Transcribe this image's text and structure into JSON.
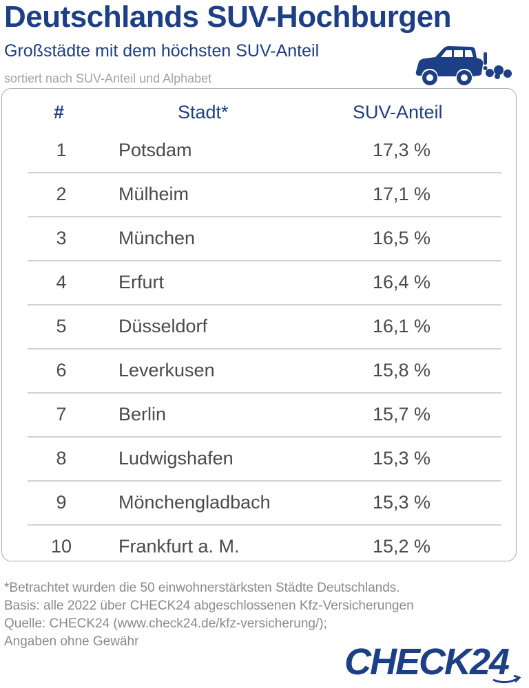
{
  "title": "Deutschlands SUV-Hochburgen",
  "subtitle": "Großstädte mit dem höchsten SUV-Anteil",
  "sort_note": "sortiert nach SUV-Anteil und Alphabet",
  "chart_data": {
    "type": "table",
    "columns": [
      "#",
      "Stadt*",
      "SUV-Anteil"
    ],
    "rows": [
      {
        "rank": "1",
        "city": "Potsdam",
        "share": "17,3 %"
      },
      {
        "rank": "2",
        "city": "Mülheim",
        "share": "17,1 %"
      },
      {
        "rank": "3",
        "city": "München",
        "share": "16,5 %"
      },
      {
        "rank": "4",
        "city": "Erfurt",
        "share": "16,4 %"
      },
      {
        "rank": "5",
        "city": "Düsseldorf",
        "share": "16,1 %"
      },
      {
        "rank": "6",
        "city": "Leverkusen",
        "share": "15,8 %"
      },
      {
        "rank": "7",
        "city": "Berlin",
        "share": "15,7 %"
      },
      {
        "rank": "8",
        "city": "Ludwigshafen",
        "share": "15,3 %"
      },
      {
        "rank": "9",
        "city": "Mönchengladbach",
        "share": "15,3 %"
      },
      {
        "rank": "10",
        "city": "Frankfurt a. M.",
        "share": "15,2 %"
      }
    ],
    "share_values": [
      17.3,
      17.1,
      16.5,
      16.4,
      16.1,
      15.8,
      15.7,
      15.3,
      15.3,
      15.2
    ],
    "unit": "%"
  },
  "footer": [
    "*Betrachtet wurden die 50 einwohnerstärksten Städte Deutschlands.",
    "Basis: alle 2022 über CHECK24 abgeschlossenen Kfz-Versicherungen",
    "Quelle: CHECK24 (www.check24.de/kfz-versicherung/);",
    "Angaben ohne Gewähr"
  ],
  "logo_text": "CHECK24",
  "colors": {
    "brand_blue": "#1d3f86",
    "text_gray": "#4a4a4a",
    "note_gray": "#a3a3a3",
    "divider": "#d2d2d2"
  },
  "icons": [
    "suv-car-icon",
    "check24-logo"
  ]
}
